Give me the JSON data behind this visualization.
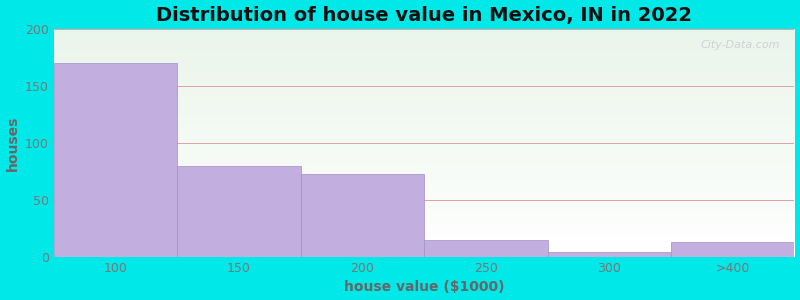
{
  "title": "Distribution of house value in Mexico, IN in 2022",
  "xlabel": "house value ($1000)",
  "ylabel": "houses",
  "bar_labels": [
    "100",
    "150",
    "200",
    "250",
    "300",
    ">400"
  ],
  "bar_values": [
    170,
    80,
    73,
    15,
    4,
    13
  ],
  "bar_color": "#c3aee0",
  "bar_edgecolor": "#a090c8",
  "background_color": "#00e8e8",
  "plot_bg_top": "#eaf5ea",
  "plot_bg_bottom": "#ffffff",
  "ylim": [
    0,
    200
  ],
  "yticks": [
    0,
    50,
    100,
    150,
    200
  ],
  "title_fontsize": 14,
  "axis_label_fontsize": 10,
  "tick_fontsize": 9,
  "label_color": "#666666",
  "tick_color": "#777777",
  "title_color": "#111111",
  "watermark_text": "City-Data.com",
  "grid_color": "#e0a0a0",
  "grid_linewidth": 0.7
}
